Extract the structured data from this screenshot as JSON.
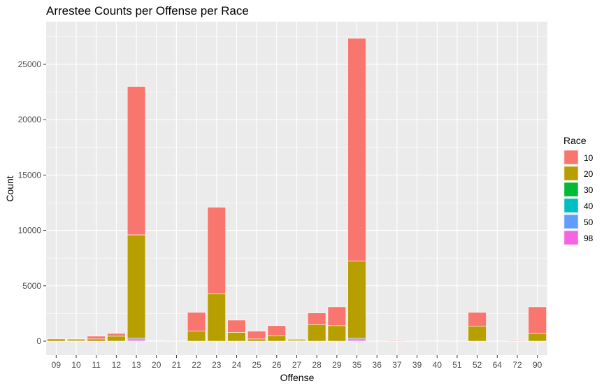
{
  "chart_data": {
    "type": "bar",
    "stacked": true,
    "title": "Arrestee Counts per Offense per Race",
    "xlabel": "Offense",
    "ylabel": "Count",
    "ylim": [
      0,
      28000
    ],
    "yticks": [
      0,
      5000,
      10000,
      15000,
      20000,
      25000
    ],
    "ytick_labels": [
      "0",
      "5000",
      "10000",
      "15000",
      "20000",
      "25000"
    ],
    "categories": [
      "09",
      "10",
      "11",
      "12",
      "13",
      "20",
      "21",
      "22",
      "23",
      "24",
      "25",
      "26",
      "27",
      "28",
      "29",
      "35",
      "36",
      "37",
      "39",
      "40",
      "51",
      "52",
      "64",
      "72",
      "90"
    ],
    "legend": {
      "title": "Race",
      "position": "right"
    },
    "grid": true,
    "panel_color": "#ebebeb",
    "series": [
      {
        "name": "98",
        "color": "#F564E3",
        "values": [
          0,
          0,
          0,
          0,
          120,
          0,
          0,
          0,
          0,
          0,
          0,
          0,
          0,
          0,
          0,
          120,
          0,
          0,
          0,
          0,
          0,
          0,
          0,
          0,
          0
        ]
      },
      {
        "name": "50",
        "color": "#619CFF",
        "values": [
          0,
          0,
          0,
          0,
          130,
          0,
          0,
          0,
          0,
          0,
          0,
          0,
          0,
          0,
          0,
          130,
          0,
          0,
          0,
          0,
          0,
          0,
          0,
          0,
          0
        ]
      },
      {
        "name": "40",
        "color": "#00BFC4",
        "values": [
          0,
          0,
          0,
          0,
          0,
          0,
          0,
          0,
          0,
          0,
          0,
          0,
          0,
          0,
          0,
          0,
          0,
          0,
          0,
          0,
          0,
          0,
          0,
          0,
          0
        ]
      },
      {
        "name": "30",
        "color": "#00BA38",
        "values": [
          0,
          0,
          0,
          0,
          0,
          0,
          0,
          0,
          0,
          0,
          0,
          0,
          0,
          0,
          0,
          0,
          0,
          0,
          0,
          0,
          0,
          0,
          0,
          0,
          0
        ]
      },
      {
        "name": "20",
        "color": "#B79F00",
        "values": [
          200,
          120,
          200,
          450,
          9350,
          20,
          0,
          900,
          4300,
          800,
          200,
          500,
          100,
          1500,
          1400,
          7000,
          0,
          20,
          0,
          20,
          0,
          1350,
          0,
          20,
          700
        ]
      },
      {
        "name": "10",
        "color": "#F8766D",
        "values": [
          50,
          80,
          250,
          250,
          13400,
          40,
          0,
          1700,
          7800,
          1100,
          700,
          900,
          80,
          1050,
          1700,
          20100,
          0,
          60,
          0,
          20,
          0,
          1250,
          0,
          60,
          2400
        ]
      }
    ]
  }
}
